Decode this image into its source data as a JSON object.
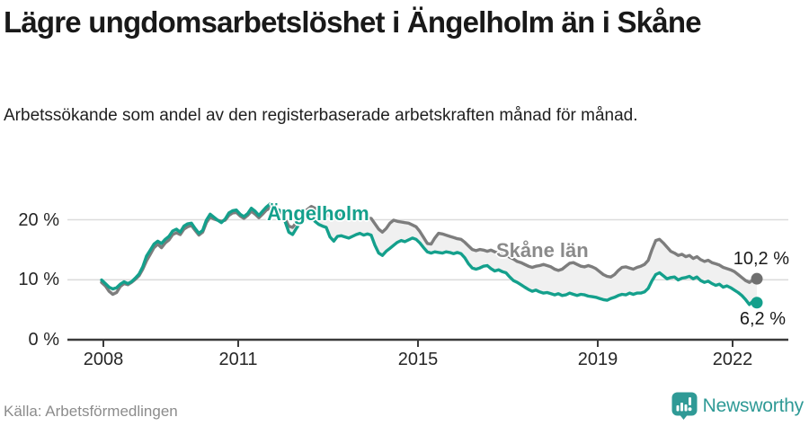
{
  "header": {
    "title": "Lägre ungdomsarbetslöshet i Ängelholm än i Skåne",
    "subtitle": "Arbetssökande som andel av den registerbaserade arbetskraften månad för månad."
  },
  "footer": {
    "source": "Källa: Arbetsförmedlingen",
    "logo_text": "Newsworthy"
  },
  "colors": {
    "angelholm_line": "#14a08c",
    "angelholm_dot": "#14a08c",
    "skane_line": "#7d7d7d",
    "skane_dot": "#6f6f6f",
    "skane_label_text": "#8a8a8a",
    "fill_between": "#f0f0f0",
    "gridline": "#dcdcdc",
    "axis": "#3a3a3a",
    "logo_teal": "#2f9a96"
  },
  "chart_data": {
    "type": "line",
    "unit": "%",
    "frequency": "monthly",
    "x_start": "2008-01",
    "x_end": "2022-08",
    "grid": "horizontal-only",
    "ylim": [
      0,
      24
    ],
    "yticks": [
      0,
      10,
      20
    ],
    "y_tick_labels": [
      "20 %",
      "10 %",
      "0 %"
    ],
    "x_tick_labels": [
      "2008",
      "2011",
      "2015",
      "2019",
      "2022"
    ],
    "series": [
      {
        "name": "Ängelholm",
        "color": "#14a08c",
        "end_value": 6.2,
        "end_label": "6,2 %",
        "values": [
          10.0,
          9.4,
          8.8,
          8.5,
          8.7,
          9.3,
          9.7,
          9.4,
          9.7,
          10.3,
          11.0,
          12.2,
          14.0,
          15.0,
          16.0,
          16.5,
          16.1,
          16.8,
          17.3,
          18.2,
          18.5,
          18.0,
          19.0,
          19.4,
          19.5,
          18.6,
          17.8,
          18.3,
          20.0,
          21.0,
          20.5,
          20.0,
          19.6,
          20.2,
          21.2,
          21.6,
          21.7,
          21.0,
          20.6,
          21.1,
          22.0,
          21.5,
          20.8,
          21.5,
          22.2,
          22.7,
          22.1,
          21.8,
          21.5,
          19.8,
          18.0,
          17.6,
          18.6,
          19.6,
          20.3,
          20.8,
          20.4,
          19.8,
          19.3,
          19.0,
          18.8,
          17.2,
          16.5,
          17.3,
          17.4,
          17.2,
          17.0,
          17.3,
          17.6,
          17.8,
          17.5,
          17.7,
          17.5,
          15.8,
          14.5,
          14.1,
          14.8,
          15.3,
          15.8,
          16.3,
          16.6,
          16.4,
          16.7,
          17.0,
          16.8,
          16.2,
          15.4,
          14.7,
          14.5,
          14.7,
          14.6,
          14.5,
          14.7,
          14.6,
          14.4,
          14.6,
          14.4,
          13.7,
          12.7,
          12.0,
          11.8,
          12.0,
          12.3,
          12.4,
          11.9,
          11.5,
          11.7,
          11.4,
          11.2,
          10.5,
          9.9,
          9.6,
          9.2,
          8.8,
          8.4,
          8.1,
          8.3,
          8.0,
          7.8,
          7.9,
          7.7,
          7.5,
          7.7,
          7.4,
          7.5,
          7.8,
          7.6,
          7.4,
          7.6,
          7.5,
          7.3,
          7.2,
          7.1,
          6.9,
          6.7,
          6.6,
          6.9,
          7.1,
          7.4,
          7.6,
          7.5,
          7.8,
          7.6,
          7.8,
          7.8,
          8.0,
          8.6,
          9.9,
          10.9,
          11.2,
          10.7,
          10.2,
          10.4,
          10.5,
          10.0,
          10.3,
          10.4,
          10.6,
          10.2,
          10.5,
          9.9,
          9.6,
          9.8,
          9.4,
          9.1,
          9.3,
          8.8,
          9.0,
          8.7,
          8.3,
          7.9,
          7.4,
          6.7,
          5.9,
          6.5,
          6.2
        ]
      },
      {
        "name": "Skåne län",
        "color": "#7d7d7d",
        "end_value": 10.2,
        "end_label": "10,2 %",
        "values": [
          9.6,
          9.0,
          8.1,
          7.6,
          7.9,
          8.9,
          9.4,
          9.2,
          9.6,
          10.1,
          10.7,
          11.8,
          13.2,
          14.3,
          15.4,
          16.0,
          15.4,
          16.2,
          16.7,
          17.6,
          17.9,
          17.6,
          18.5,
          18.9,
          19.1,
          18.3,
          17.5,
          18.0,
          19.6,
          20.5,
          20.2,
          20.0,
          19.8,
          20.0,
          20.8,
          21.2,
          21.3,
          20.7,
          20.3,
          20.8,
          21.5,
          21.0,
          20.4,
          21.0,
          21.7,
          22.0,
          21.6,
          21.4,
          21.3,
          20.3,
          19.0,
          18.8,
          19.6,
          20.4,
          21.2,
          21.8,
          22.3,
          22.0,
          21.6,
          21.2,
          21.0,
          20.6,
          20.8,
          21.0,
          20.8,
          20.6,
          20.7,
          20.5,
          20.4,
          20.6,
          20.3,
          20.4,
          20.3,
          19.4,
          18.5,
          18.0,
          18.6,
          19.5,
          20.0,
          19.8,
          19.7,
          19.6,
          19.5,
          19.2,
          18.9,
          18.1,
          17.1,
          16.1,
          16.0,
          17.0,
          17.8,
          17.7,
          17.5,
          17.3,
          17.1,
          16.9,
          16.8,
          16.3,
          15.7,
          15.1,
          14.9,
          15.1,
          15.0,
          14.8,
          15.0,
          14.7,
          14.5,
          14.3,
          14.2,
          13.8,
          13.5,
          13.1,
          12.9,
          12.6,
          12.3,
          12.1,
          12.3,
          12.4,
          12.6,
          12.4,
          12.2,
          11.8,
          11.6,
          11.8,
          12.3,
          12.8,
          12.9,
          12.6,
          12.3,
          12.2,
          12.4,
          12.2,
          11.9,
          11.4,
          10.9,
          10.6,
          10.5,
          10.9,
          11.6,
          12.1,
          12.2,
          12.0,
          11.8,
          12.1,
          12.3,
          12.6,
          13.3,
          15.1,
          16.6,
          16.8,
          16.2,
          15.5,
          14.8,
          14.5,
          14.1,
          14.3,
          13.9,
          14.1,
          13.6,
          13.9,
          13.4,
          13.1,
          13.3,
          12.9,
          12.7,
          12.5,
          12.1,
          11.9,
          11.7,
          11.4,
          10.9,
          10.4,
          9.9,
          9.6,
          10.0,
          10.2
        ]
      }
    ]
  }
}
